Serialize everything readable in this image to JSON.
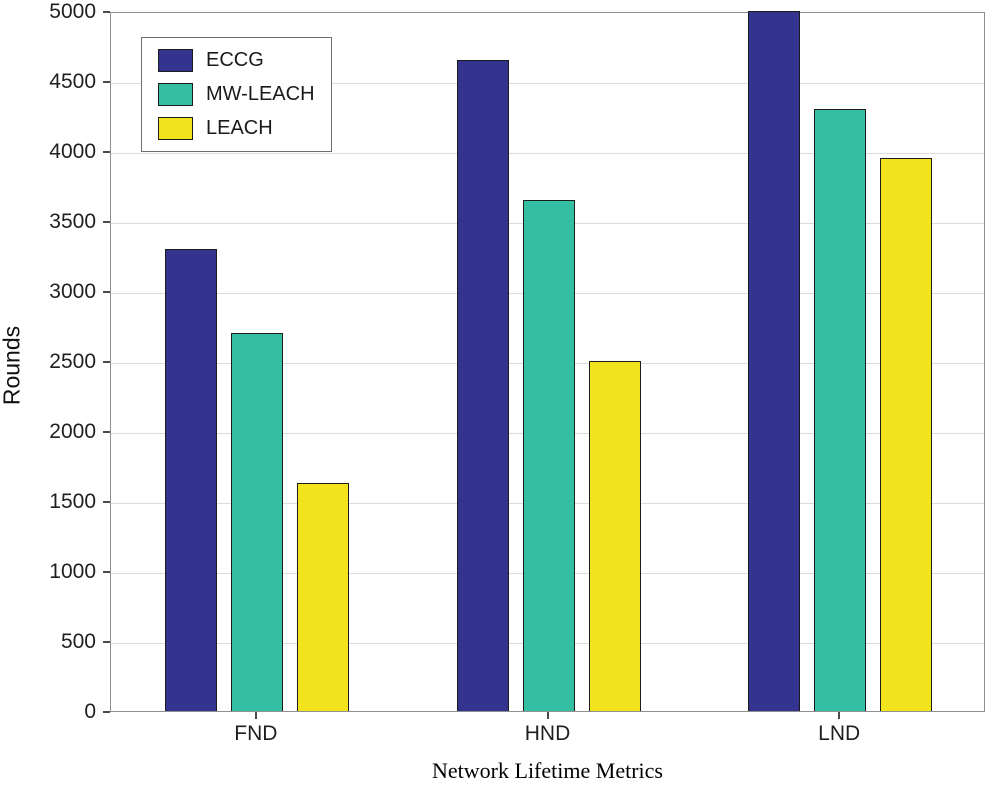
{
  "chart_data": {
    "type": "bar",
    "title": "",
    "xlabel": "Network Lifetime Metrics",
    "ylabel": "Rounds",
    "categories": [
      "FND",
      "HND",
      "LND"
    ],
    "series": [
      {
        "name": "ECCG",
        "color": "#34348F",
        "values": [
          3300,
          4650,
          5000
        ]
      },
      {
        "name": "MW-LEACH",
        "color": "#35BFA2",
        "values": [
          2700,
          3650,
          4300
        ]
      },
      {
        "name": "LEACH",
        "color": "#F2E41C",
        "values": [
          1630,
          2500,
          3950
        ]
      }
    ],
    "ylim": [
      0,
      5000
    ],
    "ytick_step": 500,
    "yticks": [
      0,
      500,
      1000,
      1500,
      2000,
      2500,
      3000,
      3500,
      4000,
      4500,
      5000
    ],
    "grid": true,
    "legend_position": "top-left",
    "axis_box": true
  }
}
